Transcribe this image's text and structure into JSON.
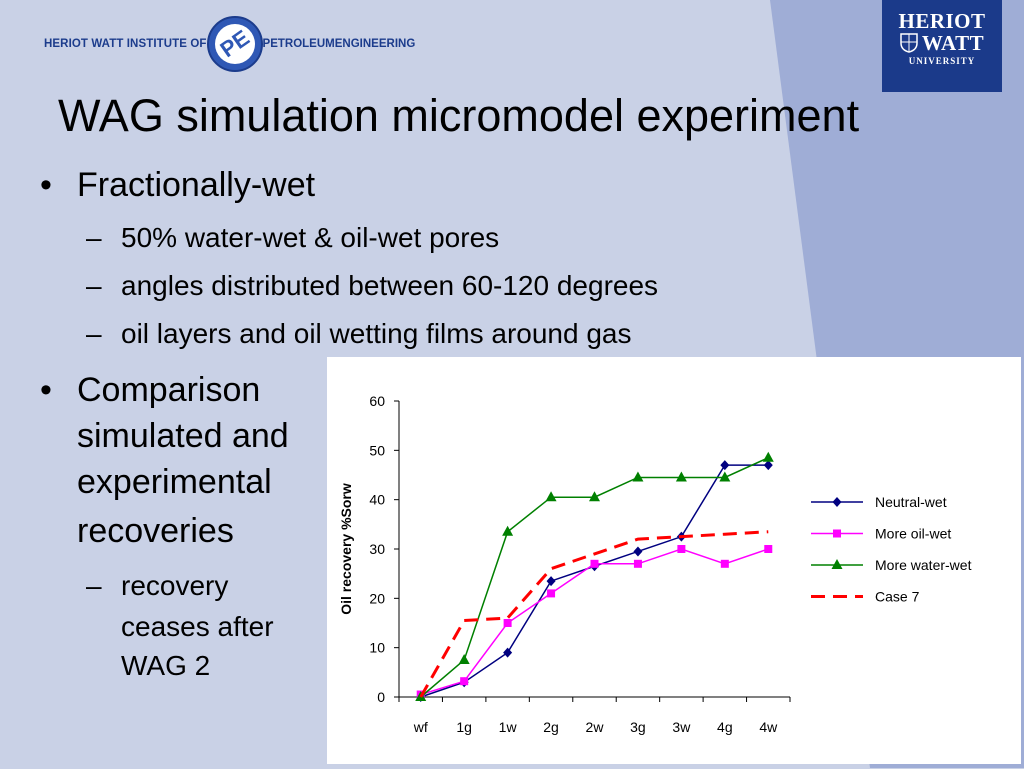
{
  "header": {
    "institute_prefix": "HERIOT WATT INSTITUTE OF",
    "institute_petroleum": "PETROLEUM",
    "institute_engineering": "ENGINEERING",
    "logo_letters": "PE",
    "university_line1": "HERIOT",
    "university_line2": "WATT",
    "university_line3": "UNIVERSITY"
  },
  "title": "WAG simulation micromodel experiment",
  "bullets": [
    {
      "text": "Fractionally-wet",
      "sub": [
        "50% water-wet & oil-wet pores",
        "angles distributed between 60-120 degrees",
        "oil layers and oil wetting films around gas"
      ]
    },
    {
      "lines": [
        "Comparison",
        "simulated and",
        "experimental",
        "recoveries"
      ],
      "sub_lines": [
        "recovery",
        "ceases after",
        "WAG 2"
      ]
    }
  ],
  "bullet_symbol": "•",
  "dash_symbol": "–",
  "colors": {
    "background": "#c9d1e6",
    "stripe": "#9fadd6",
    "brand": "#1b3a8a"
  },
  "chart_data": {
    "type": "line",
    "categories": [
      "wf",
      "1g",
      "1w",
      "2g",
      "2w",
      "3g",
      "3w",
      "4g",
      "4w"
    ],
    "ylabel": "Oil recovery %Sorw",
    "xlabel": "",
    "ylim": [
      0,
      60
    ],
    "yticks": [
      0,
      10,
      20,
      30,
      40,
      50,
      60
    ],
    "legend_position": "right",
    "series": [
      {
        "name": "Neutral-wet",
        "color": "#000080",
        "marker": "diamond",
        "dash": false,
        "values": [
          0,
          3,
          9,
          23.5,
          26.5,
          29.5,
          32.5,
          47,
          47
        ]
      },
      {
        "name": "More oil-wet",
        "color": "#ff00ff",
        "marker": "square",
        "dash": false,
        "values": [
          0.5,
          3.2,
          15,
          21,
          27,
          27,
          30,
          27,
          30
        ]
      },
      {
        "name": "More water-wet",
        "color": "#008000",
        "marker": "triangle",
        "dash": false,
        "values": [
          0,
          7.5,
          33.5,
          40.5,
          40.5,
          44.5,
          44.5,
          44.5,
          48.5
        ]
      },
      {
        "name": "Case 7",
        "color": "#ff0000",
        "marker": "none",
        "dash": true,
        "values": [
          0,
          15.5,
          16,
          26,
          29,
          32,
          32.5,
          33,
          33.5
        ]
      }
    ]
  }
}
